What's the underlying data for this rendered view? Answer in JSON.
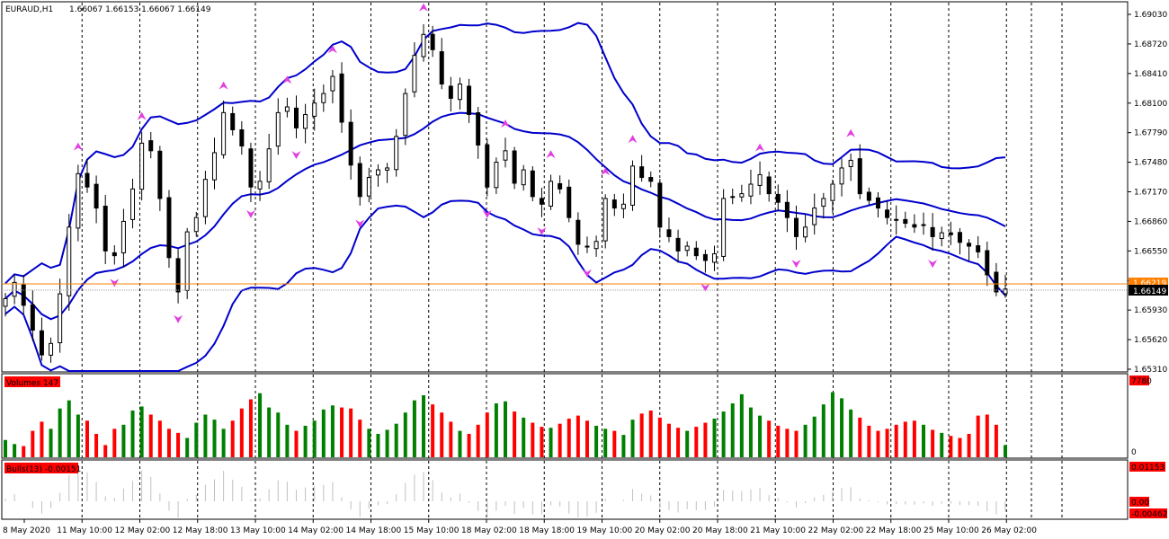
{
  "chart_header": {
    "symbol": "EURAUD,H1",
    "ohlc": "1.66067 1.66153 1.66067 1.66149"
  },
  "price_axis": {
    "ticks": [
      "1.69030",
      "1.68720",
      "1.68410",
      "1.68100",
      "1.67790",
      "1.67480",
      "1.67170",
      "1.66860",
      "1.66550",
      "1.66240",
      "1.65930",
      "1.65620",
      "1.65310"
    ],
    "current_price": "1.66149",
    "ask_price": "1.66219"
  },
  "volume_panel": {
    "label": "Volumes 147",
    "axis_top": "7780",
    "axis_bottom": "0"
  },
  "bulls_panel": {
    "label": "Bulls(13) -0.00151",
    "axis_top": "0.01153",
    "axis_zero": "0.00",
    "axis_bottom": "-0.00462"
  },
  "time_axis": {
    "labels": [
      "8 May 2020",
      "11 May 10:00",
      "12 May 02:00",
      "12 May 18:00",
      "13 May 10:00",
      "14 May 02:00",
      "14 May 18:00",
      "15 May 10:00",
      "18 May 02:00",
      "18 May 18:00",
      "19 May 10:00",
      "20 May 02:00",
      "20 May 18:00",
      "21 May 10:00",
      "22 May 02:00",
      "22 May 18:00",
      "25 May 10:00",
      "26 May 02:00"
    ]
  },
  "colors": {
    "background": "#ffffff",
    "candle": "#000000",
    "bollinger": "#0000cc",
    "fractal": "#e040e0",
    "volume_up": "#008000",
    "volume_down": "#ff0000",
    "bulls": "#c0c0c0",
    "ask_line": "#ff8000",
    "label_bg": "#ff0000"
  },
  "chart_data": {
    "type": "line",
    "series": [
      {
        "values": [
          1.6605,
          1.6622,
          1.6598,
          1.6572,
          1.6546,
          1.6558,
          1.661,
          1.668,
          1.6736,
          1.6722,
          1.67,
          1.6655,
          1.665,
          1.6686,
          1.672,
          1.6768,
          1.676,
          1.671,
          1.6648,
          1.6612,
          1.6675,
          1.669,
          1.673,
          1.6758,
          1.68,
          1.6782,
          1.6765,
          1.6722,
          1.6728,
          1.6762,
          1.68,
          1.6806,
          1.6784,
          1.6798,
          1.681,
          1.682,
          1.6838,
          1.679,
          1.6745,
          1.6712,
          1.6732,
          1.674,
          1.6742,
          1.6775,
          1.682,
          1.686,
          1.6882,
          1.6866,
          1.683,
          1.6815,
          1.683,
          1.6798,
          1.6766,
          1.6722,
          1.6748,
          1.676,
          1.6726,
          1.674,
          1.6712,
          1.6704,
          1.6728,
          1.672,
          1.669,
          1.6662,
          1.666,
          1.6665,
          1.671,
          1.67,
          1.6704,
          1.6744,
          1.6732,
          1.6728,
          1.668,
          1.667,
          1.6655,
          1.666,
          1.665,
          1.6645,
          1.6652,
          1.671,
          1.6712,
          1.6715,
          1.6725,
          1.6735,
          1.6715,
          1.6706,
          1.669,
          1.667,
          1.668,
          1.67,
          1.671,
          1.6725,
          1.6742,
          1.675,
          1.6715,
          1.6708,
          1.67,
          1.669,
          1.6688,
          1.6684,
          1.668,
          1.6682,
          1.667,
          1.6674,
          1.6672,
          1.6664,
          1.666,
          1.6654,
          1.663,
          1.6612,
          1.6615
        ]
      }
    ],
    "volumes": [
      1700,
      1300,
      1100,
      2600,
      3500,
      2800,
      4800,
      5600,
      4200,
      3600,
      2300,
      1200,
      2800,
      3200,
      4600,
      5000,
      4200,
      3600,
      2800,
      2400,
      1900,
      3400,
      4200,
      3700,
      2800,
      3600,
      4800,
      5700,
      6300,
      4900,
      4400,
      3200,
      2600,
      3100,
      3600,
      4700,
      5100,
      4900,
      4800,
      3700,
      2800,
      2300,
      2700,
      3300,
      4400,
      5600,
      6100,
      5200,
      4400,
      3500,
      2600,
      2300,
      3200,
      4400,
      5300,
      5500,
      4500,
      3900,
      3400,
      3000,
      2900,
      3300,
      3800,
      4100,
      3600,
      3100,
      2800,
      2600,
      2200,
      3700,
      4300,
      4600,
      3900,
      3300,
      2900,
      2600,
      3000,
      3400,
      3800,
      4500,
      5300,
      6200,
      4900,
      4100,
      3600,
      3100,
      2800,
      2600,
      3200,
      4000,
      5200,
      6400,
      5800,
      4700,
      3900,
      3100,
      2600,
      2800,
      3200,
      3500,
      3600,
      3200,
      2700,
      2400,
      2100,
      1900,
      2300,
      4100,
      4200,
      3200,
      1200
    ]
  }
}
